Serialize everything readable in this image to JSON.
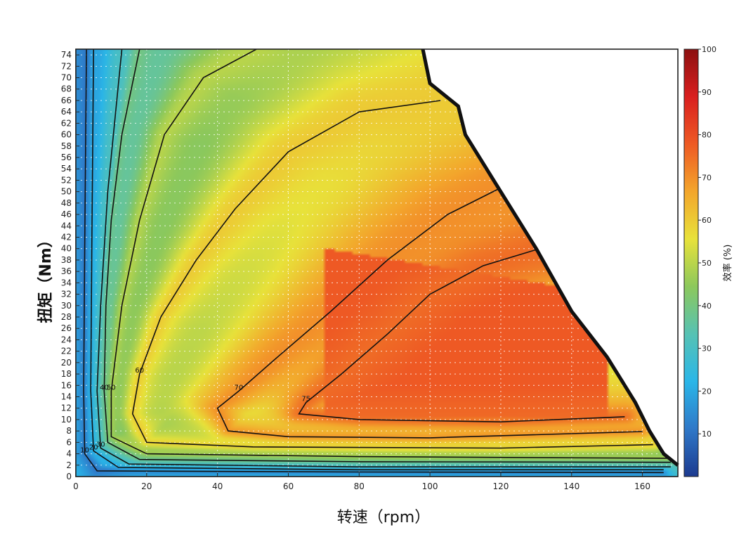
{
  "chart_data": {
    "type": "heatmap",
    "subtype": "efficiency contour map",
    "xlabel": "转速（rpm）",
    "ylabel": "扭矩（Nm）",
    "colorbar_label": "效率 (%)",
    "xlim": [
      0,
      170
    ],
    "ylim": [
      0,
      75
    ],
    "x_ticks": [
      0,
      20,
      40,
      60,
      80,
      100,
      120,
      140,
      160
    ],
    "y_ticks": [
      0,
      2,
      4,
      6,
      8,
      10,
      12,
      14,
      16,
      18,
      20,
      22,
      24,
      26,
      28,
      30,
      32,
      34,
      36,
      38,
      40,
      42,
      44,
      46,
      48,
      50,
      52,
      54,
      56,
      58,
      60,
      62,
      64,
      66,
      68,
      70,
      72,
      74
    ],
    "colorbar_range": [
      0,
      100
    ],
    "colorbar_ticks": [
      10,
      20,
      30,
      40,
      50,
      60,
      70,
      80,
      90,
      100
    ],
    "colormap": [
      "#1c3a8f",
      "#2f78c8",
      "#2ab6e8",
      "#56c2b4",
      "#8cc85c",
      "#e8e23a",
      "#f3a62c",
      "#ee5a24",
      "#d91f1f",
      "#8c1010"
    ],
    "grid": true,
    "contour_levels": [
      10,
      20,
      30,
      40,
      50,
      60,
      70,
      75
    ],
    "max_torque_envelope": [
      {
        "rpm": 98,
        "torque": 75
      },
      {
        "rpm": 100,
        "torque": 69
      },
      {
        "rpm": 108,
        "torque": 65
      },
      {
        "rpm": 110,
        "torque": 60
      },
      {
        "rpm": 120,
        "torque": 50
      },
      {
        "rpm": 130,
        "torque": 40
      },
      {
        "rpm": 140,
        "torque": 29
      },
      {
        "rpm": 150,
        "torque": 21
      },
      {
        "rpm": 158,
        "torque": 13
      },
      {
        "rpm": 162,
        "torque": 8
      },
      {
        "rpm": 166,
        "torque": 4
      },
      {
        "rpm": 170,
        "torque": 2
      }
    ],
    "contours": [
      {
        "level": 10,
        "label": "10",
        "points": [
          [
            3,
            75
          ],
          [
            2.5,
            40
          ],
          [
            2.2,
            15
          ],
          [
            2.5,
            4
          ],
          [
            6,
            1
          ],
          [
            80,
            0.8
          ],
          [
            166,
            0.7
          ]
        ]
      },
      {
        "level": 20,
        "label": "20",
        "points": [
          [
            5,
            75
          ],
          [
            4.5,
            40
          ],
          [
            4.2,
            15
          ],
          [
            5,
            4.5
          ],
          [
            12,
            1.6
          ],
          [
            80,
            1.2
          ],
          [
            166,
            1.2
          ]
        ]
      },
      {
        "level": 30,
        "label": "30",
        "points": [
          [
            13,
            75
          ],
          [
            9,
            50
          ],
          [
            7,
            30
          ],
          [
            6,
            15
          ],
          [
            7,
            5
          ],
          [
            15,
            2.2
          ],
          [
            80,
            1.7
          ],
          [
            168,
            1.7
          ]
        ]
      },
      {
        "level": 40,
        "label": "40",
        "points": [
          [
            18,
            75
          ],
          [
            13,
            60
          ],
          [
            10,
            45
          ],
          [
            8.5,
            30
          ],
          [
            8,
            15
          ],
          [
            9,
            6
          ],
          [
            18,
            3.0
          ],
          [
            80,
            2.6
          ],
          [
            168,
            2.5
          ]
        ]
      },
      {
        "level": 50,
        "label": "50",
        "points": [
          [
            51,
            75
          ],
          [
            36,
            70
          ],
          [
            25,
            60
          ],
          [
            18,
            45
          ],
          [
            13,
            30
          ],
          [
            10,
            15
          ],
          [
            10,
            7
          ],
          [
            20,
            4.0
          ],
          [
            80,
            3.5
          ],
          [
            168,
            3.2
          ]
        ]
      },
      {
        "level": 60,
        "label": "60",
        "points": [
          [
            103,
            66
          ],
          [
            80,
            64
          ],
          [
            60,
            57
          ],
          [
            45,
            47
          ],
          [
            34,
            38
          ],
          [
            24,
            28
          ],
          [
            18,
            18
          ],
          [
            16,
            11
          ],
          [
            20,
            6
          ],
          [
            50,
            5.2
          ],
          [
            120,
            5.0
          ],
          [
            163,
            5.6
          ]
        ]
      },
      {
        "level": 70,
        "label": "70",
        "points": [
          [
            121,
            51
          ],
          [
            105,
            46
          ],
          [
            88,
            38
          ],
          [
            72,
            29
          ],
          [
            57,
            21
          ],
          [
            46,
            15
          ],
          [
            40,
            12
          ],
          [
            43,
            8
          ],
          [
            60,
            7
          ],
          [
            100,
            6.8
          ],
          [
            160,
            7.9
          ]
        ]
      },
      {
        "level": 75,
        "label": "75",
        "points": [
          [
            131,
            40
          ],
          [
            115,
            37
          ],
          [
            100,
            32
          ],
          [
            88,
            25
          ],
          [
            75,
            18
          ],
          [
            65,
            13
          ],
          [
            63,
            11
          ],
          [
            80,
            10
          ],
          [
            120,
            9.6
          ],
          [
            155,
            10.5
          ]
        ]
      }
    ]
  }
}
